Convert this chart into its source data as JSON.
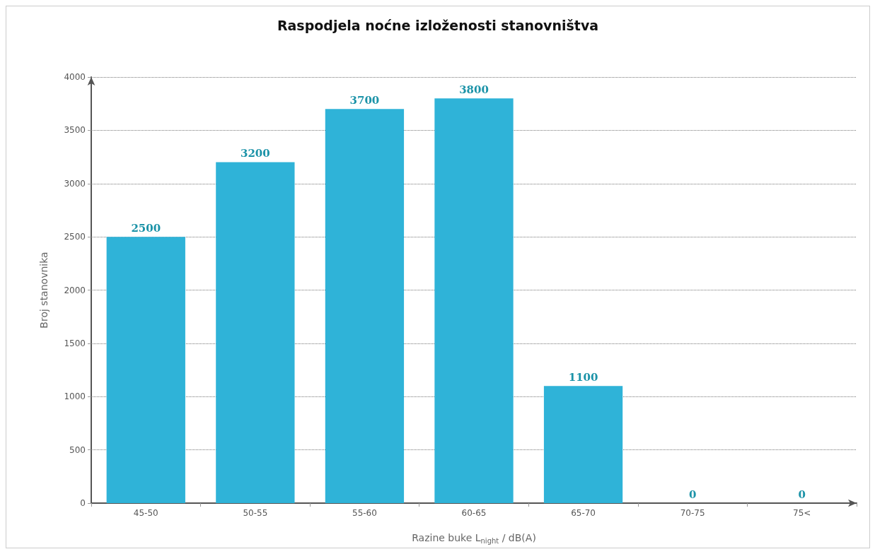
{
  "chart_data": {
    "type": "bar",
    "title": "Raspodjela noćne izloženosti stanovništva",
    "xlabel": "Razine buke L$_{night}$ / dB(A)",
    "ylabel": "Broj stanovnika",
    "categories": [
      "45-50",
      "50-55",
      "55-60",
      "60-65",
      "65-70",
      "70-75",
      "75<"
    ],
    "values": [
      2500,
      3200,
      3700,
      3800,
      1100,
      0,
      0
    ],
    "color": "#2fb3d8",
    "ylim": [
      0,
      4000
    ],
    "yticks": [
      0,
      500,
      1000,
      1500,
      2000,
      2500,
      3000,
      3500,
      4000
    ],
    "grid": "y",
    "data_labels": true
  }
}
